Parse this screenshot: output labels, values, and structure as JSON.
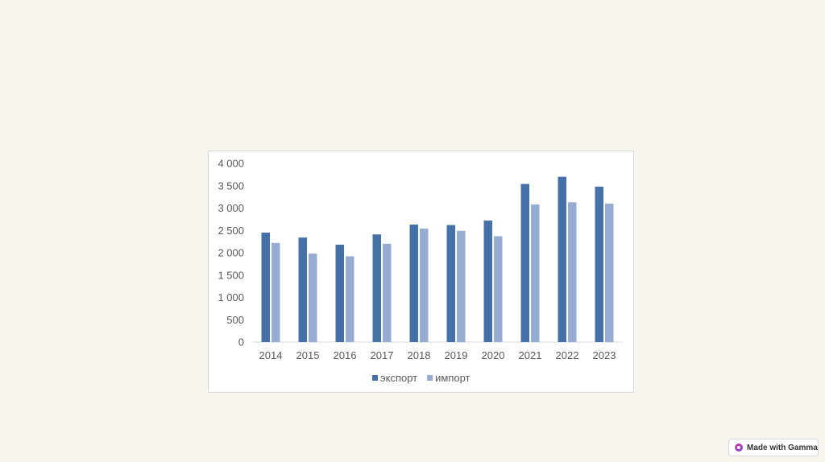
{
  "chart_data": {
    "type": "bar",
    "title": "",
    "xlabel": "",
    "ylabel": "",
    "categories": [
      "2014",
      "2015",
      "2016",
      "2017",
      "2018",
      "2019",
      "2020",
      "2021",
      "2022",
      "2023"
    ],
    "series": [
      {
        "name": "экспорт",
        "color": "#4471a8",
        "values": [
          2450,
          2340,
          2180,
          2410,
          2630,
          2620,
          2720,
          3540,
          3700,
          3480
        ]
      },
      {
        "name": "импорт",
        "color": "#96acd3",
        "values": [
          2220,
          1980,
          1920,
          2200,
          2540,
          2490,
          2370,
          3080,
          3130,
          3100
        ]
      }
    ],
    "ylim": [
      0,
      4000
    ],
    "yticks": [
      0,
      500,
      1000,
      1500,
      2000,
      2500,
      3000,
      3500,
      4000
    ],
    "ytick_labels": [
      "0",
      "500",
      "1 000",
      "1 500",
      "2 000",
      "2 500",
      "3 000",
      "3 500",
      "4 000"
    ],
    "grid": false,
    "legend_position": "bottom"
  },
  "badge": {
    "label": "Made with Gamma",
    "icon": "gamma-logo-icon"
  }
}
